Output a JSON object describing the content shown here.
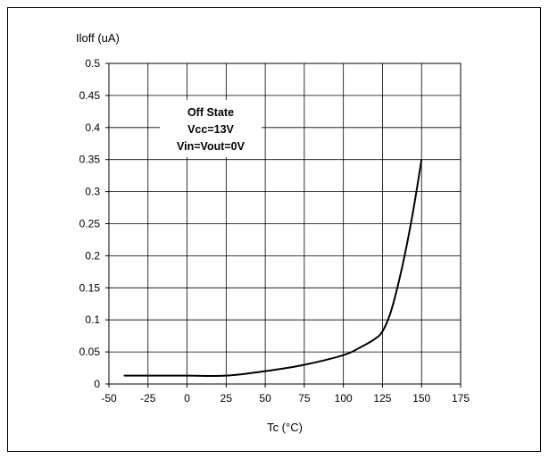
{
  "chart_data": {
    "type": "line",
    "ylabel": "Iloff (uA)",
    "xlabel": "Tc (°C)",
    "xlim": [
      -50,
      175
    ],
    "ylim": [
      0,
      0.5
    ],
    "x_ticks": [
      -50,
      -25,
      0,
      25,
      50,
      75,
      100,
      125,
      150,
      175
    ],
    "x_tick_labels": [
      "-50",
      "-25",
      "0",
      "25",
      "50",
      "75",
      "100",
      "125",
      "150",
      "175"
    ],
    "y_ticks": [
      0,
      0.05,
      0.1,
      0.15,
      0.2,
      0.25,
      0.3,
      0.35,
      0.4,
      0.45,
      0.5
    ],
    "y_tick_labels": [
      "0",
      "0.05",
      "0.1",
      "0.15",
      "0.2",
      "0.25",
      "0.3",
      "0.35",
      "0.4",
      "0.45",
      "0.5"
    ],
    "grid": true,
    "annotation": [
      "Off State",
      "Vcc=13V",
      "Vin=Vout=0V"
    ],
    "series": [
      {
        "x": [
          -40,
          -25,
          0,
          25,
          50,
          75,
          100,
          110,
          120,
          125,
          130,
          135,
          140,
          145,
          150
        ],
        "y": [
          0.013,
          0.013,
          0.013,
          0.013,
          0.02,
          0.03,
          0.045,
          0.056,
          0.07,
          0.082,
          0.11,
          0.155,
          0.21,
          0.275,
          0.35
        ]
      }
    ]
  },
  "colors": {
    "line": "#000000",
    "grid": "#000000",
    "background": "#ffffff"
  }
}
